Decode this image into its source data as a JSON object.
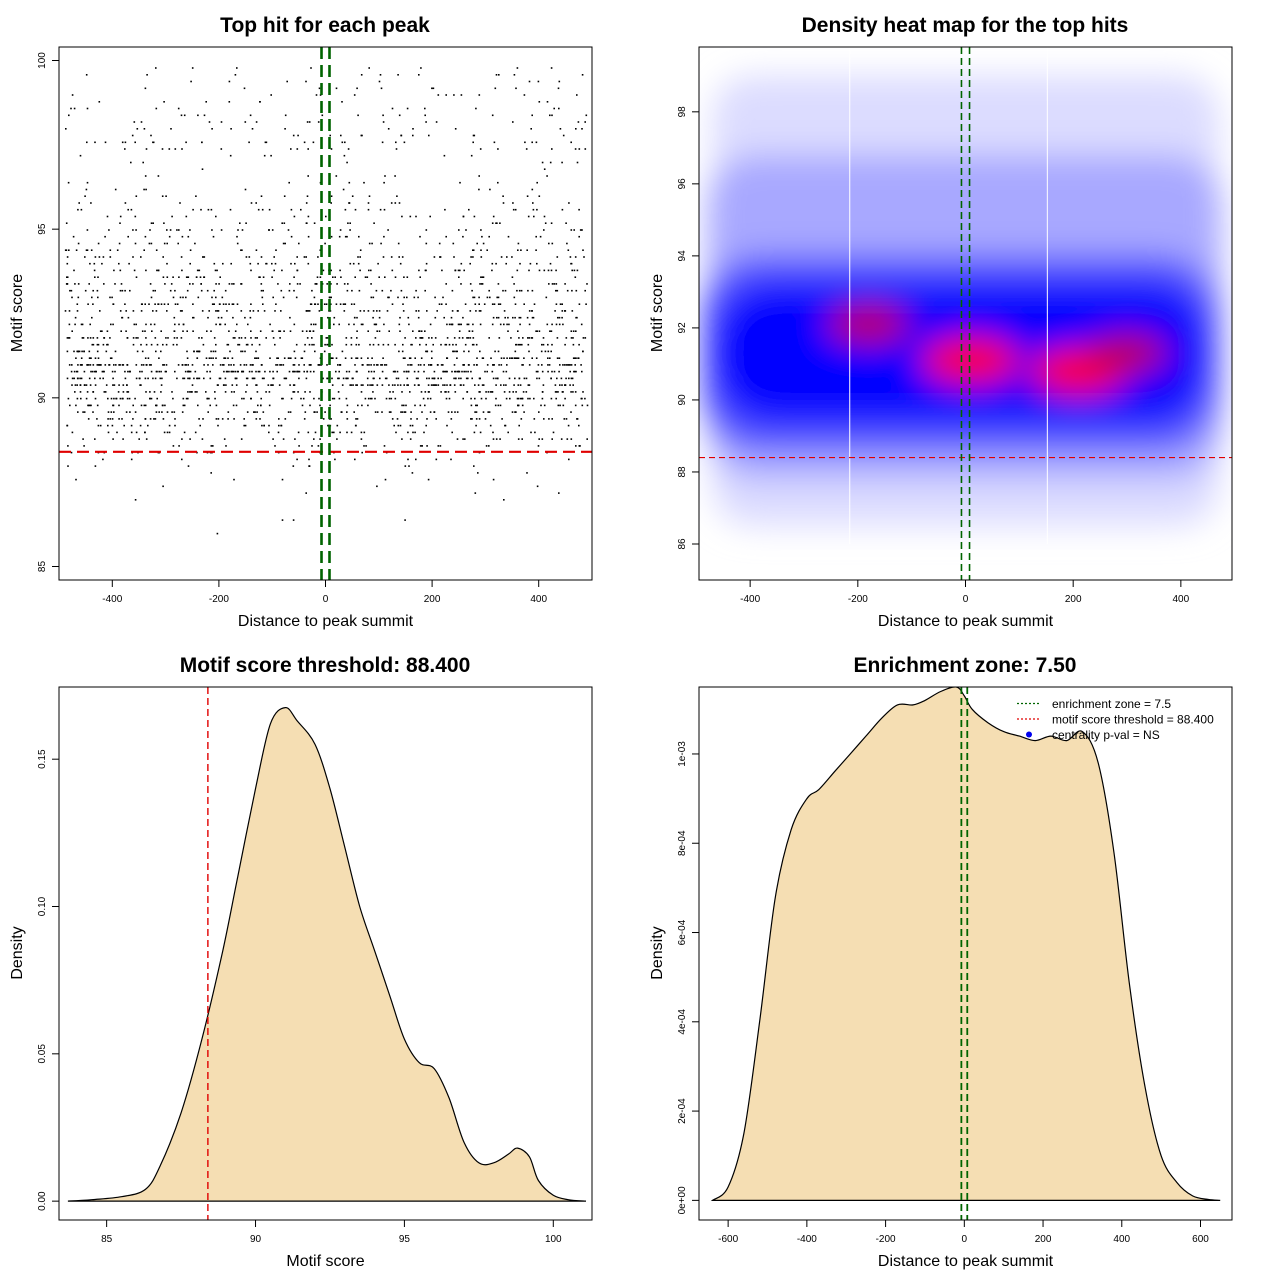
{
  "chart_data": [
    {
      "type": "scatter",
      "title": "Top hit for each peak",
      "xlabel": "Distance to peak summit",
      "ylabel": "Motif score",
      "xlim": [
        -500,
        500
      ],
      "ylim": [
        84.6,
        100.4
      ],
      "xticks": [
        "-400",
        "-200",
        "0",
        "200",
        "400"
      ],
      "yticks": [
        "85",
        "90",
        "95",
        "100"
      ],
      "x_range": [
        -490,
        490
      ],
      "score_distribution": {
        "mode": 91.2,
        "spread_low": 1.4,
        "spread_high": 2.6,
        "min": 85,
        "max": 99.8
      },
      "n_points": 2400,
      "threshold": 88.4,
      "enrichment_zone": [
        -7.5,
        7.5
      ],
      "colors": {
        "points": "#000000",
        "threshold": "#e00000",
        "zone": "#006400"
      }
    },
    {
      "type": "heatmap",
      "title": "Density heat map for the top hits",
      "xlabel": "Distance to peak summit",
      "ylabel": "Motif score",
      "xlim": [
        -495,
        495
      ],
      "ylim": [
        85,
        99.8
      ],
      "xticks": [
        "-400",
        "-200",
        "0",
        "200",
        "400"
      ],
      "yticks": [
        "86",
        "88",
        "90",
        "92",
        "94",
        "96",
        "98"
      ],
      "hotspots": [
        {
          "x": 210,
          "y": 90.8,
          "intensity": "high"
        },
        {
          "x": 10,
          "y": 91.1,
          "intensity": "high"
        },
        {
          "x": -180,
          "y": 92.1,
          "intensity": "medium"
        },
        {
          "x": 300,
          "y": 91.3,
          "intensity": "medium"
        }
      ],
      "guide_lines_x": [
        -215,
        152
      ],
      "threshold": 88.4,
      "enrichment_zone": [
        -7.5,
        7.5
      ],
      "colors": {
        "low": "#ffffff",
        "mid": "#0000ff",
        "high": "#ff0000",
        "threshold": "#e00000",
        "zone": "#006400"
      }
    },
    {
      "type": "area",
      "title": "Motif score threshold: 88.400",
      "xlabel": "Motif score",
      "ylabel": "Density",
      "xlim": [
        83.4,
        101.3
      ],
      "ylim": [
        -0.0064,
        0.1745
      ],
      "xticks": [
        "85",
        "90",
        "95",
        "100"
      ],
      "yticks": [
        "0.00",
        "0.05",
        "0.10",
        "0.15"
      ],
      "x": [
        83.7,
        84.5,
        85.5,
        86.3,
        86.8,
        87.5,
        88.2,
        88.9,
        89.4,
        90.0,
        90.5,
        91.0,
        91.4,
        92.0,
        92.5,
        93.0,
        93.5,
        94.0,
        94.5,
        95.0,
        95.5,
        96.0,
        96.5,
        97.0,
        97.5,
        98.0,
        98.5,
        98.8,
        99.2,
        99.5,
        100.0,
        100.5,
        101.1
      ],
      "y": [
        0.0,
        0.0005,
        0.0015,
        0.004,
        0.012,
        0.03,
        0.055,
        0.085,
        0.11,
        0.14,
        0.162,
        0.1675,
        0.163,
        0.155,
        0.14,
        0.12,
        0.1,
        0.085,
        0.07,
        0.055,
        0.047,
        0.045,
        0.035,
        0.02,
        0.013,
        0.013,
        0.016,
        0.018,
        0.015,
        0.007,
        0.002,
        0.0005,
        0.0
      ],
      "threshold": 88.4,
      "colors": {
        "fill": "#f5deb3",
        "line": "#000000",
        "threshold": "#e00000"
      }
    },
    {
      "type": "area",
      "title": "Enrichment zone: 7.50",
      "xlabel": "Distance to peak summit",
      "ylabel": "Density",
      "xlim": [
        -674,
        680
      ],
      "ylim": [
        -4.4e-05,
        0.00115
      ],
      "xticks": [
        "-600",
        "-400",
        "-200",
        "0",
        "200",
        "400",
        "600"
      ],
      "yticks": [
        "0e+00",
        "2e-04",
        "4e-04",
        "6e-04",
        "8e-04",
        "1e-03"
      ],
      "x": [
        -640,
        -600,
        -560,
        -520,
        -480,
        -440,
        -400,
        -370,
        -330,
        -290,
        -250,
        -210,
        -170,
        -130,
        -100,
        -60,
        -20,
        0,
        20,
        60,
        100,
        140,
        180,
        220,
        260,
        300,
        340,
        380,
        420,
        460,
        500,
        540,
        580,
        620,
        650
      ],
      "y": [
        0.0,
        3e-05,
        0.00015,
        0.0004,
        0.00068,
        0.00083,
        0.0009,
        0.00092,
        0.00096,
        0.001,
        0.00104,
        0.00108,
        0.00111,
        0.00111,
        0.00112,
        0.00114,
        0.00115,
        0.00113,
        0.0011,
        0.00107,
        0.00105,
        0.00104,
        0.00103,
        0.00104,
        0.00103,
        0.00105,
        0.00098,
        0.00078,
        0.00048,
        0.00025,
        0.0001,
        4e-05,
        1e-05,
        2e-06,
        0.0
      ],
      "enrichment_zone": [
        -7.5,
        7.5
      ],
      "legend": {
        "position": "top-right",
        "items": [
          "enrichment zone = 7.5",
          "motif score threshold = 88.400",
          "centrality p-val = NS"
        ]
      },
      "colors": {
        "fill": "#f5deb3",
        "line": "#000000",
        "zone": "#006400",
        "threshold": "#e00000",
        "pval": "#0000ee"
      }
    }
  ]
}
